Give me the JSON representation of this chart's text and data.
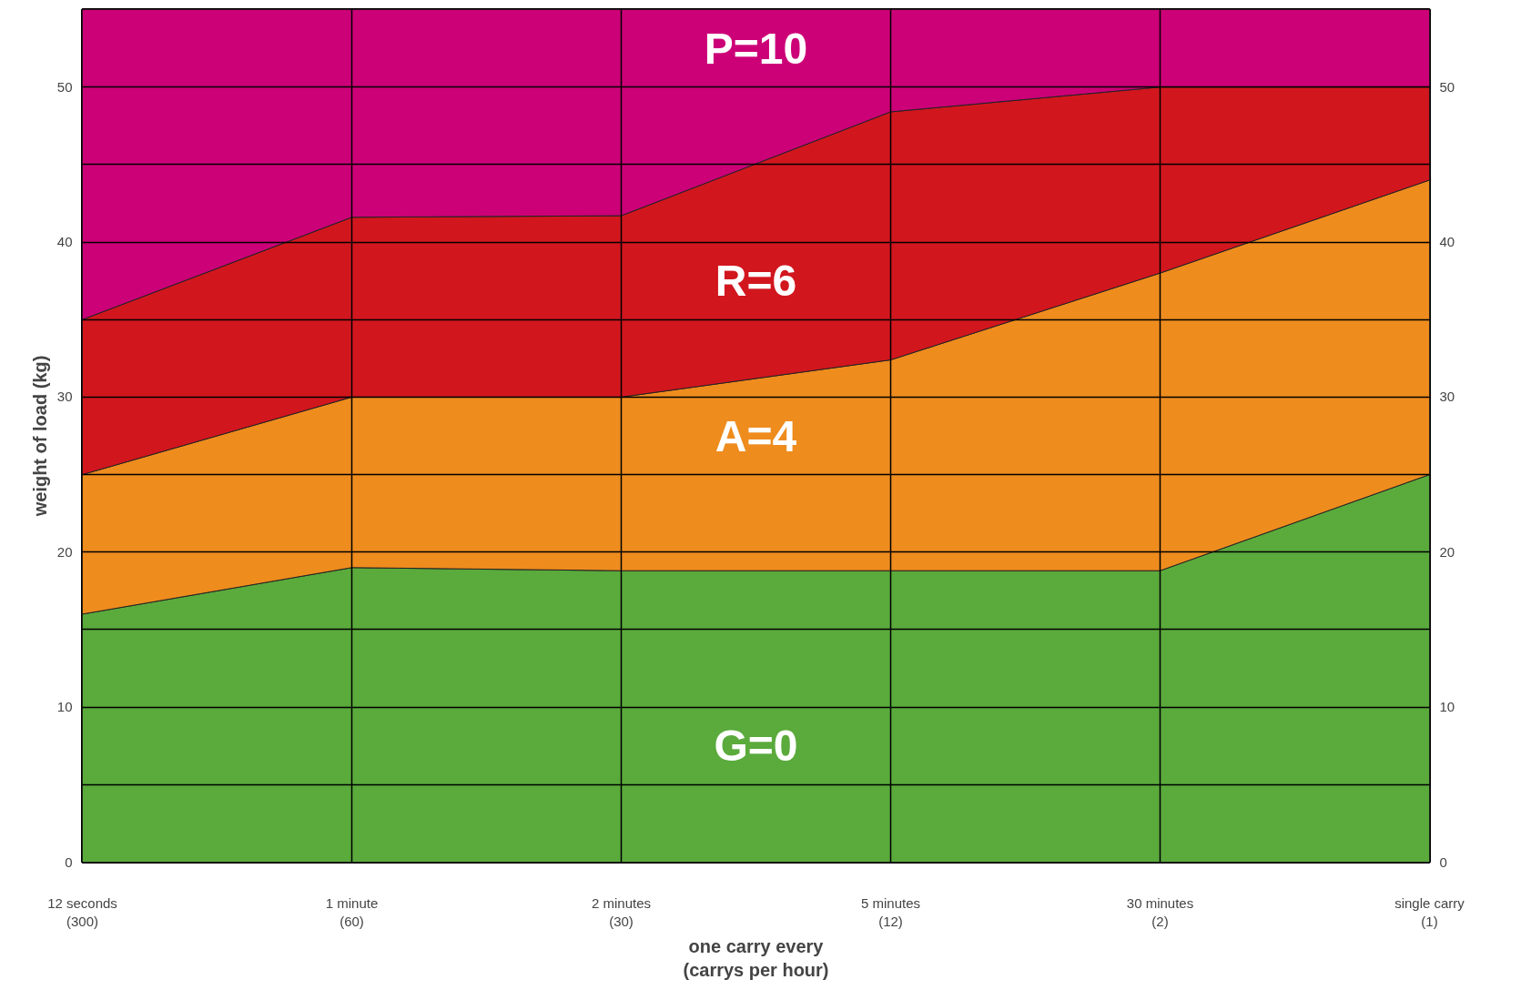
{
  "chart_data": {
    "type": "area",
    "stacked": true,
    "xlabel": "one carry every\n(carrys per hour)",
    "ylabel": "weight of load (kg)",
    "categories": [
      "12 seconds\n(300)",
      "1 minute\n(60)",
      "2 minutes\n(30)",
      "5 minutes\n(12)",
      "30 minutes\n(2)",
      "single carry\n(1)"
    ],
    "series": [
      {
        "name": "G=0",
        "color": "#5aaa3c",
        "values": [
          16,
          19,
          18.8,
          18.8,
          18.8,
          25
        ]
      },
      {
        "name": "A=4",
        "color": "#ee8c1e",
        "values": [
          9,
          11,
          11.2,
          13.6,
          19.2,
          19
        ]
      },
      {
        "name": "R=6",
        "color": "#d2161e",
        "values": [
          10,
          11.6,
          11.7,
          16,
          12,
          6
        ]
      },
      {
        "name": "P=10",
        "color": "#cc0077",
        "values": [
          20,
          13.4,
          13.3,
          6.6,
          5,
          5
        ]
      }
    ],
    "ylim": [
      0,
      55
    ],
    "yticks": [
      0,
      {
        "value": 5,
        "label": null
      },
      10,
      {
        "value": 15,
        "label": null
      },
      20,
      {
        "value": 25,
        "label": null
      },
      30,
      {
        "value": 35,
        "label": null
      },
      40,
      {
        "value": 45,
        "label": null
      },
      50
    ],
    "y2lim": [
      0,
      55
    ],
    "y2ticks": [
      0,
      10,
      20,
      30,
      40,
      50
    ],
    "grid": true
  }
}
